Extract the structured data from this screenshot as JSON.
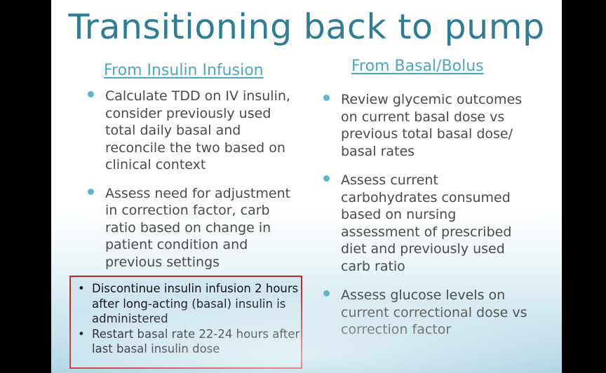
{
  "slide": {
    "title": "Transitioning back to pump",
    "left_column": {
      "heading": "From Insulin Infusion",
      "bullets": [
        "Calculate TDD on IV insulin, consider previously used total daily basal and reconcile the two based on clinical context",
        "Assess need for adjustment in correction factor, carb ratio based on change in patient condition and previous settings"
      ]
    },
    "right_column": {
      "heading": "From Basal/Bolus",
      "bullets": [
        "Review glycemic outcomes on current basal dose vs previous total basal dose/ basal rates",
        "Assess current carbohydrates consumed based on nursing assessment of prescribed diet and previously used carb ratio",
        "Assess glucose levels on current correctional dose vs correction factor"
      ]
    },
    "callout": {
      "bullet_glyph": "•",
      "items": [
        "Discontinue insulin infusion 2 hours after long-acting (basal) insulin is administered",
        "Restart basal rate 22-24 hours after last basal insulin dose"
      ]
    },
    "colors": {
      "title": "#2e7d95",
      "heading": "#4aa8c4",
      "bullet_dot": "#5bb5cf",
      "callout_border": "#c62828"
    }
  }
}
